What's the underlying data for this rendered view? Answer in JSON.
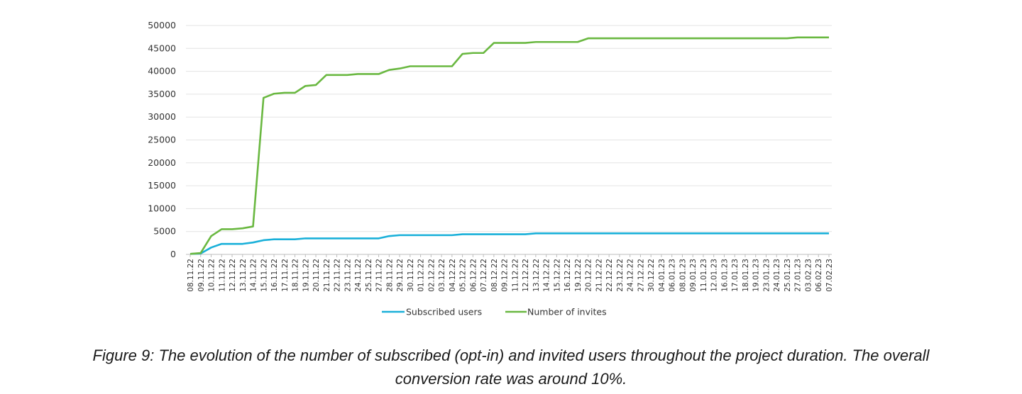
{
  "chart_data": {
    "type": "line",
    "title": "",
    "xlabel": "",
    "ylabel": "",
    "ylim": [
      0,
      50000
    ],
    "yticks": [
      0,
      5000,
      10000,
      15000,
      20000,
      25000,
      30000,
      35000,
      40000,
      45000,
      50000
    ],
    "grid": true,
    "legend_position": "bottom",
    "x": [
      "08.11.22",
      "09.11.22",
      "10.11.22",
      "11.11.22",
      "12.11.22",
      "13.11.22",
      "14.11.22",
      "15.11.22",
      "16.11.22",
      "17.11.22",
      "18.11.22",
      "19.11.22",
      "20.11.22",
      "21.11.22",
      "22.11.22",
      "23.11.22",
      "24.11.22",
      "25.11.22",
      "27.11.22",
      "28.11.22",
      "29.11.22",
      "30.11.22",
      "01.12.22",
      "02.12.22",
      "03.12.22",
      "04.12.22",
      "05.12.22",
      "06.12.22",
      "07.12.22",
      "08.12.22",
      "09.12.22",
      "11.12.22",
      "12.12.22",
      "13.12.22",
      "14.12.22",
      "15.12.22",
      "16.12.22",
      "19.12.22",
      "20.12.22",
      "21.12.22",
      "22.12.22",
      "23.12.22",
      "24.12.22",
      "27.12.22",
      "30.12.22",
      "04.01.23",
      "06.01.23",
      "08.01.23",
      "09.01.23",
      "11.01.23",
      "12.01.23",
      "16.01.23",
      "17.01.23",
      "18.01.23",
      "19.01.23",
      "23.01.23",
      "24.01.23",
      "25.01.23",
      "27.01.23",
      "03.02.23",
      "06.02.23",
      "07.02.23"
    ],
    "series": [
      {
        "name": "Subscribed users",
        "color": "#1ab0d9",
        "values": [
          100,
          200,
          1500,
          2300,
          2300,
          2300,
          2600,
          3100,
          3300,
          3300,
          3300,
          3500,
          3500,
          3500,
          3500,
          3500,
          3500,
          3500,
          3500,
          4000,
          4200,
          4200,
          4200,
          4200,
          4200,
          4200,
          4400,
          4400,
          4400,
          4400,
          4400,
          4400,
          4400,
          4600,
          4600,
          4600,
          4600,
          4600,
          4600,
          4600,
          4600,
          4600,
          4600,
          4600,
          4600,
          4600,
          4600,
          4600,
          4600,
          4600,
          4600,
          4600,
          4600,
          4600,
          4600,
          4600,
          4600,
          4600,
          4600,
          4600,
          4600,
          4600
        ]
      },
      {
        "name": "Number of invites",
        "color": "#6ab841",
        "values": [
          100,
          300,
          4000,
          5500,
          5500,
          5700,
          6100,
          34200,
          35100,
          35300,
          35300,
          36800,
          37000,
          39200,
          39200,
          39200,
          39400,
          39400,
          39400,
          40300,
          40600,
          41100,
          41100,
          41100,
          41100,
          41100,
          43800,
          44000,
          44000,
          46200,
          46200,
          46200,
          46200,
          46400,
          46400,
          46400,
          46400,
          46400,
          47200,
          47200,
          47200,
          47200,
          47200,
          47200,
          47200,
          47200,
          47200,
          47200,
          47200,
          47200,
          47200,
          47200,
          47200,
          47200,
          47200,
          47200,
          47200,
          47200,
          47400,
          47400,
          47400,
          47400
        ]
      }
    ]
  },
  "caption": {
    "line1": "Figure 9: The evolution of the number of subscribed (opt-in) and invited users throughout the project duration. The overall",
    "line2": "conversion rate was around 10%."
  }
}
